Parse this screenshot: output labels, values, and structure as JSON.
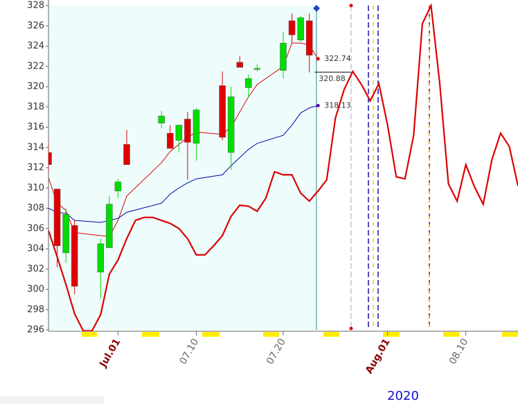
{
  "chart_data": {
    "type": "candlestick",
    "up_color": "#00dd00",
    "down_color": "#e00000",
    "xlim": [
      "2020-06-23",
      "2020-08-16"
    ],
    "ylim": [
      296,
      328
    ],
    "yticks": [
      296,
      298,
      300,
      302,
      304,
      306,
      308,
      310,
      312,
      314,
      316,
      318,
      320,
      322,
      324,
      326,
      328
    ],
    "xticks": [
      {
        "value": "2020-07-01",
        "label": "Jul.01"
      },
      {
        "value": "2020-07-10",
        "label": "07.10"
      },
      {
        "value": "2020-07-20",
        "label": "07.20"
      },
      {
        "value": "2020-08-01",
        "label": "Aug.01"
      },
      {
        "value": "2020-08-10",
        "label": "08.10"
      }
    ],
    "x_label": "2020",
    "x": [
      "2020-06-23",
      "2020-06-24",
      "2020-06-25",
      "2020-06-26",
      "2020-06-29",
      "2020-06-30",
      "2020-07-01",
      "2020-07-02",
      "2020-07-06",
      "2020-07-07",
      "2020-07-08",
      "2020-07-09",
      "2020-07-10",
      "2020-07-13",
      "2020-07-14",
      "2020-07-15",
      "2020-07-16",
      "2020-07-17",
      "2020-07-20",
      "2020-07-21",
      "2020-07-22",
      "2020-07-23"
    ],
    "open": [
      313.5,
      309.9,
      303.6,
      306.3,
      301.7,
      304.1,
      309.7,
      314.3,
      316.4,
      315.4,
      314.7,
      316.8,
      314.4,
      320.1,
      313.5,
      322.4,
      319.9,
      321.8,
      321.6,
      326.5,
      324.6,
      326.5
    ],
    "high": [
      314.5,
      309.9,
      308.0,
      306.8,
      305.0,
      309.2,
      310.9,
      315.7,
      317.6,
      316.2,
      316.2,
      317.5,
      317.9,
      321.5,
      320.0,
      323.0,
      321.2,
      322.2,
      325.4,
      327.2,
      327.0,
      327.2
    ],
    "low": [
      311.5,
      302.2,
      302.6,
      299.5,
      299.1,
      304.1,
      309.0,
      312.3,
      315.9,
      313.9,
      313.5,
      310.8,
      312.7,
      314.7,
      311.8,
      321.9,
      318.9,
      321.5,
      320.8,
      324.3,
      324.4,
      321.4
    ],
    "close": [
      312.3,
      304.3,
      307.4,
      300.3,
      304.5,
      308.4,
      310.6,
      312.3,
      317.1,
      313.9,
      316.2,
      314.5,
      317.7,
      315.0,
      319.0,
      321.9,
      320.8,
      321.8,
      324.3,
      325.1,
      326.8,
      323.1
    ],
    "series": [
      {
        "color": "#dd0000",
        "width": 1,
        "x": [
          "2020-06-23",
          "2020-06-24",
          "2020-06-25",
          "2020-06-26",
          "2020-06-29",
          "2020-06-30",
          "2020-07-01",
          "2020-07-02",
          "2020-07-06",
          "2020-07-07",
          "2020-07-08",
          "2020-07-09",
          "2020-07-10",
          "2020-07-13",
          "2020-07-14",
          "2020-07-15",
          "2020-07-16",
          "2020-07-17",
          "2020-07-20",
          "2020-07-21",
          "2020-07-22",
          "2020-07-23",
          "2020-07-24"
        ],
        "values": [
          311.0,
          308.5,
          307.8,
          305.6,
          305.3,
          305.2,
          306.8,
          309.2,
          312.5,
          313.6,
          314.3,
          315.0,
          315.5,
          315.3,
          316.0,
          317.5,
          319.0,
          320.2,
          322.0,
          324.3,
          324.3,
          324.1,
          322.74
        ]
      },
      {
        "color": "#0000aa",
        "width": 1,
        "x": [
          "2020-06-23",
          "2020-06-24",
          "2020-06-25",
          "2020-06-26",
          "2020-06-29",
          "2020-06-30",
          "2020-07-01",
          "2020-07-02",
          "2020-07-06",
          "2020-07-07",
          "2020-07-08",
          "2020-07-09",
          "2020-07-10",
          "2020-07-13",
          "2020-07-14",
          "2020-07-15",
          "2020-07-16",
          "2020-07-17",
          "2020-07-20",
          "2020-07-21",
          "2020-07-22",
          "2020-07-23",
          "2020-07-24"
        ],
        "values": [
          308.0,
          307.6,
          307.5,
          306.8,
          306.6,
          306.8,
          307.0,
          307.6,
          308.5,
          309.4,
          310.0,
          310.5,
          310.9,
          311.3,
          312.2,
          313.0,
          313.8,
          314.4,
          315.2,
          316.2,
          317.4,
          317.9,
          318.13
        ]
      },
      {
        "color": "#dd0000",
        "width": 2.2,
        "x": [
          "2020-06-23",
          "2020-06-24",
          "2020-06-25",
          "2020-06-26",
          "2020-06-27",
          "2020-06-28",
          "2020-06-29",
          "2020-06-30",
          "2020-07-01",
          "2020-07-02",
          "2020-07-03",
          "2020-07-04",
          "2020-07-05",
          "2020-07-06",
          "2020-07-07",
          "2020-07-08",
          "2020-07-09",
          "2020-07-10",
          "2020-07-11",
          "2020-07-12",
          "2020-07-13",
          "2020-07-14",
          "2020-07-15",
          "2020-07-16",
          "2020-07-17",
          "2020-07-18",
          "2020-07-19",
          "2020-07-20",
          "2020-07-21",
          "2020-07-22",
          "2020-07-23",
          "2020-07-24",
          "2020-07-25",
          "2020-07-26",
          "2020-07-27",
          "2020-07-28",
          "2020-07-29",
          "2020-07-30",
          "2020-07-31",
          "2020-08-01",
          "2020-08-02",
          "2020-08-03",
          "2020-08-04",
          "2020-08-05",
          "2020-08-06",
          "2020-08-07",
          "2020-08-08",
          "2020-08-09",
          "2020-08-10",
          "2020-08-11",
          "2020-08-12",
          "2020-08-13",
          "2020-08-14",
          "2020-08-15",
          "2020-08-16"
        ],
        "values": [
          305.8,
          303.2,
          300.5,
          297.6,
          295.9,
          295.9,
          297.5,
          301.5,
          302.9,
          305.0,
          306.8,
          307.1,
          307.1,
          306.8,
          306.5,
          306.0,
          305.0,
          303.4,
          303.4,
          304.3,
          305.3,
          307.2,
          308.3,
          308.2,
          307.7,
          309.0,
          311.6,
          311.3,
          311.3,
          309.5,
          308.7,
          309.7,
          310.8,
          316.9,
          319.7,
          321.5,
          320.2,
          318.6,
          320.3,
          316.2,
          311.1,
          310.9,
          315.2,
          326.2,
          328.0,
          320.3,
          310.4,
          308.7,
          312.3,
          310.1,
          308.4,
          312.8,
          315.4,
          314.1,
          310.2
        ]
      }
    ],
    "annotations": [
      {
        "x": "2020-07-24",
        "value": 322.74,
        "color": "#dd0000"
      },
      {
        "x": "2020-07-24",
        "value": 320.88,
        "color": "#000000"
      },
      {
        "x": "2020-07-24",
        "value": 318.13,
        "color": "#6600aa"
      }
    ]
  }
}
